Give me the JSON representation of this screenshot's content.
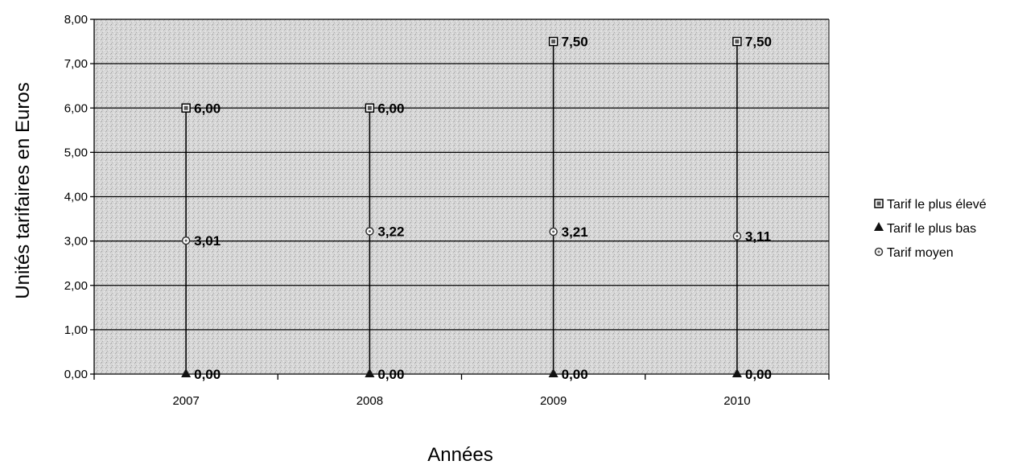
{
  "chart_data": {
    "type": "scatter",
    "title": "",
    "xlabel": "Années",
    "ylabel": "Unités tarifaires en Euros",
    "categories": [
      "2007",
      "2008",
      "2009",
      "2010"
    ],
    "ylim": [
      0,
      8
    ],
    "yticks": [
      "0,00",
      "1,00",
      "2,00",
      "3,00",
      "4,00",
      "5,00",
      "6,00",
      "7,00",
      "8,00"
    ],
    "grid": true,
    "legend_position": "right",
    "plot_background": "#d4d4d4",
    "series": [
      {
        "name": "Tarif le plus élevé",
        "marker": "square",
        "values": [
          6.0,
          6.0,
          7.5,
          7.5
        ],
        "labels": [
          "6,00",
          "6,00",
          "7,50",
          "7,50"
        ]
      },
      {
        "name": "Tarif le plus bas",
        "marker": "triangle",
        "values": [
          0.0,
          0.0,
          0.0,
          0.0
        ],
        "labels": [
          "0,00",
          "0,00",
          "0,00",
          "0,00"
        ]
      },
      {
        "name": "Tarif moyen",
        "marker": "circle",
        "values": [
          3.01,
          3.22,
          3.21,
          3.11
        ],
        "labels": [
          "3,01",
          "3,22",
          "3,21",
          "3,11"
        ]
      }
    ]
  }
}
